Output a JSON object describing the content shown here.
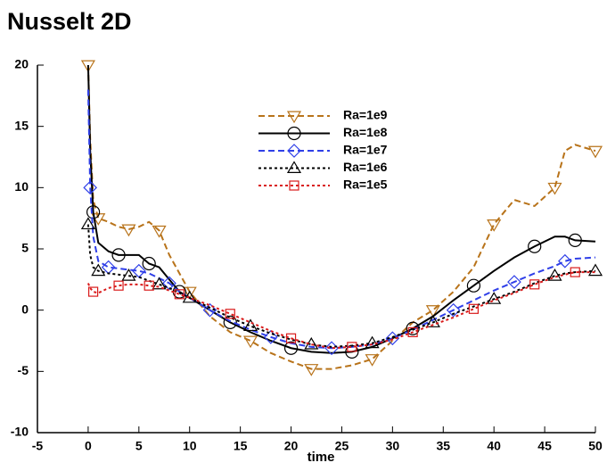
{
  "chart_data": {
    "type": "line",
    "title": "Nusselt 2D",
    "x_label": "time",
    "x": [
      0,
      0.2,
      0.5,
      1,
      2,
      3,
      4,
      5,
      6,
      7,
      8,
      9,
      10,
      12,
      14,
      16,
      18,
      20,
      22,
      24,
      26,
      28,
      30,
      32,
      34,
      36,
      38,
      40,
      42,
      44,
      46,
      47,
      48,
      50
    ],
    "series": [
      {
        "name": "Ra=1e9",
        "color": "#b8731a",
        "dash": "dashed",
        "marker": "triangle-down",
        "values": [
          20,
          14,
          9,
          7.5,
          7.2,
          6.8,
          6.6,
          6.8,
          7.2,
          6.5,
          4.5,
          3,
          1.5,
          -0.5,
          -1.8,
          -2.5,
          -3.5,
          -4.2,
          -4.8,
          -4.8,
          -4.5,
          -4,
          -2.5,
          -1,
          0,
          1.5,
          3.5,
          7,
          9,
          8.5,
          10,
          13,
          13.5,
          13
        ]
      },
      {
        "name": "Ra=1e8",
        "color": "#000000",
        "dash": "solid",
        "marker": "circle",
        "values": [
          20,
          13,
          8,
          5.5,
          4.8,
          4.5,
          4.5,
          4.5,
          3.8,
          3.5,
          2.5,
          1.5,
          1,
          0,
          -1,
          -1.8,
          -2.5,
          -3.1,
          -3.4,
          -3.5,
          -3.4,
          -3,
          -2.3,
          -1.5,
          -0.5,
          0.8,
          2,
          3.2,
          4.3,
          5.2,
          6,
          6,
          5.7,
          5.6
        ]
      },
      {
        "name": "Ra=1e7",
        "color": "#2f3fe8",
        "dash": "dashed",
        "marker": "diamond",
        "values": [
          18,
          10,
          6,
          4,
          3.5,
          3.4,
          3.3,
          3.2,
          3,
          2.6,
          2.2,
          1.5,
          1,
          0,
          -0.9,
          -1.6,
          -2.2,
          -2.7,
          -3,
          -3.1,
          -3,
          -2.8,
          -2.3,
          -1.6,
          -0.8,
          0,
          0.8,
          1.6,
          2.3,
          3,
          3.6,
          4,
          4.2,
          4.3
        ]
      },
      {
        "name": "Ra=1e6",
        "color": "#000000",
        "dash": "dotted",
        "marker": "triangle-up",
        "values": [
          7,
          4.5,
          3.5,
          3.2,
          3,
          2.9,
          2.8,
          2.7,
          2.4,
          2.1,
          1.8,
          1.4,
          1,
          0.2,
          -0.6,
          -1.3,
          -1.9,
          -2.4,
          -2.8,
          -3,
          -2.9,
          -2.7,
          -2.2,
          -1.6,
          -1,
          -0.3,
          0.3,
          0.9,
          1.5,
          2.2,
          2.8,
          3,
          3.1,
          3.2
        ]
      },
      {
        "name": "Ra=1e5",
        "color": "#d91a1a",
        "dash": "dotted",
        "marker": "square",
        "values": [
          2.2,
          1.8,
          1.5,
          1.4,
          1.8,
          2,
          2.1,
          2.1,
          2,
          1.9,
          1.6,
          1.3,
          1,
          0.4,
          -0.3,
          -1,
          -1.7,
          -2.3,
          -2.8,
          -3.1,
          -3,
          -2.8,
          -2.4,
          -1.8,
          -1.2,
          -0.6,
          0.1,
          0.8,
          1.4,
          2.1,
          2.7,
          2.9,
          3.1,
          3.1
        ]
      }
    ],
    "xlim": [
      -5,
      50
    ],
    "xticks": [
      -5,
      0,
      5,
      10,
      15,
      20,
      25,
      30,
      35,
      40,
      45,
      50
    ],
    "ylim": [
      -10,
      20
    ],
    "yticks": [
      -10,
      -5,
      0,
      5,
      10,
      15,
      20
    ],
    "grid": false,
    "legend": "upper center"
  }
}
